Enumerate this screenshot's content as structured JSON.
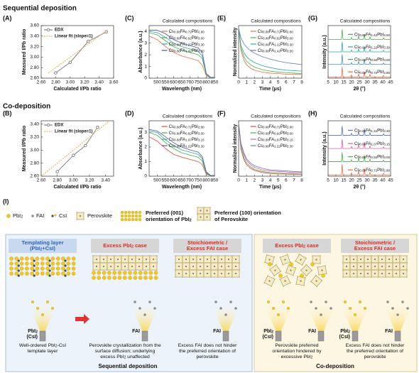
{
  "sections": [
    "Sequential deposition",
    "Co-deposition"
  ],
  "chart_data": [
    {
      "type": "line",
      "label": "(A)",
      "xlabel": "Calculated I/Pb ratio",
      "ylabel": "Measured I/Pb ratio",
      "xlim": [
        2.6,
        3.6
      ],
      "xticks": [
        {
          "value": 2.6,
          "label": "2.60"
        },
        {
          "value": 2.8,
          "label": "2.80"
        },
        {
          "value": 3.0,
          "label": "3.00"
        },
        {
          "value": 3.2,
          "label": "3.20"
        },
        {
          "value": 3.4,
          "label": "3.40"
        },
        {
          "value": 3.6,
          "label": "3.60"
        }
      ],
      "ylim": [
        2.6,
        3.6
      ],
      "yticks": [
        {
          "value": 2.6,
          "label": "2.60"
        },
        {
          "value": 2.8,
          "label": "2.80"
        },
        {
          "value": 3.0,
          "label": "3.00"
        },
        {
          "value": 3.2,
          "label": "3.20"
        },
        {
          "value": 3.4,
          "label": "3.40"
        },
        {
          "value": 3.6,
          "label": "3.60"
        }
      ],
      "legend": "upper left",
      "series": [
        {
          "name": "EDX",
          "color": "#6b6b6b",
          "marker": true,
          "x": [
            2.8,
            3.0,
            3.25,
            3.5
          ],
          "values": [
            2.7,
            2.9,
            3.3,
            3.48
          ]
        },
        {
          "name": "Linear fit (slope=1)",
          "color": "#e8a33a",
          "dashed": true,
          "x": [
            2.7,
            3.5
          ],
          "values": [
            2.7,
            3.5
          ]
        }
      ]
    },
    {
      "type": "line",
      "label": "(B)",
      "xlabel": "Calculated I/Pb ratio",
      "ylabel": "Measured I/Pb ratio",
      "xlim": [
        2.6,
        3.5
      ],
      "xticks": [
        {
          "value": 2.6,
          "label": "2.60"
        },
        {
          "value": 2.8,
          "label": "2.80"
        },
        {
          "value": 3.0,
          "label": "3.00"
        },
        {
          "value": 3.2,
          "label": "3.20"
        },
        {
          "value": 3.4,
          "label": "3.40"
        }
      ],
      "ylim": [
        2.6,
        3.45
      ],
      "yticks": [
        {
          "value": 2.6,
          "label": "2.60"
        },
        {
          "value": 2.8,
          "label": "2.80"
        },
        {
          "value": 3.0,
          "label": "3.00"
        },
        {
          "value": 3.2,
          "label": "3.20"
        },
        {
          "value": 3.4,
          "label": "3.40"
        }
      ],
      "legend": "upper left",
      "series": [
        {
          "name": "EDX",
          "color": "#6b6b6b",
          "marker": true,
          "x": [
            2.8,
            3.0,
            3.15,
            3.3
          ],
          "values": [
            2.67,
            2.92,
            3.07,
            3.35
          ]
        },
        {
          "name": "Linear fit (slope=1)",
          "color": "#e8a33a",
          "dashed": true,
          "x": [
            2.6,
            3.45
          ],
          "values": [
            2.6,
            3.45
          ]
        }
      ]
    },
    {
      "type": "line",
      "label": "(C)",
      "legend_title": "Calculated compositions",
      "xlabel": "Wavelength (nm)",
      "ylabel": "Absorbance (a.u.)",
      "x": [
        450,
        500,
        550,
        600,
        650,
        700,
        750,
        775,
        800,
        825,
        850
      ],
      "xlim": [
        450,
        850
      ],
      "xticks": [
        500,
        550,
        600,
        650,
        700,
        750,
        800,
        850
      ],
      "ylim": [
        0,
        4.5
      ],
      "yticks": [
        0,
        1,
        2,
        3,
        4
      ],
      "legend": "upper right",
      "series": [
        {
          "name": "Cs0.08FA0.72PbI2.80",
          "color": "#ef6a3a",
          "values": [
            3.6,
            3.3,
            2.7,
            2.2,
            1.9,
            1.7,
            1.5,
            1.1,
            0.2,
            0.05,
            0.02
          ]
        },
        {
          "name": "Cs0.08FA0.92PbI3.00",
          "color": "#4cab4c",
          "values": [
            3.9,
            3.7,
            3.2,
            2.7,
            2.4,
            2.2,
            2.0,
            1.7,
            0.3,
            0.05,
            0.03
          ]
        },
        {
          "name": "Cs0.08FA1.22PbI3.30",
          "color": "#2fa6a0",
          "values": [
            4.0,
            3.9,
            3.5,
            3.0,
            2.7,
            2.5,
            2.3,
            1.9,
            0.3,
            0.05,
            0.03
          ]
        },
        {
          "name": "Cs0.08FA1.42PbI3.50",
          "color": "#4a58a8",
          "values": [
            4.1,
            4.1,
            3.8,
            3.3,
            3.0,
            2.8,
            2.6,
            2.2,
            0.4,
            0.08,
            0.05
          ]
        }
      ]
    },
    {
      "type": "line",
      "label": "(D)",
      "legend_title": "Calculated compositions",
      "xlabel": "Wavelength (nm)",
      "ylabel": "Absorbance (a.u.)",
      "x": [
        450,
        500,
        550,
        600,
        650,
        700,
        750,
        775,
        800,
        825,
        850
      ],
      "xlim": [
        450,
        850
      ],
      "xticks": [
        500,
        550,
        600,
        650,
        700,
        750,
        800,
        850
      ],
      "ylim": [
        0,
        3.8
      ],
      "yticks": [
        0,
        1,
        2,
        3
      ],
      "legend": "upper right",
      "series": [
        {
          "name": "Cs0.08FA0.72PbI2.80",
          "color": "#e8483a",
          "values": [
            2.7,
            2.4,
            1.9,
            1.5,
            1.3,
            1.15,
            1.0,
            0.8,
            0.15,
            0.04,
            0.02
          ]
        },
        {
          "name": "Cs0.08FA0.92PbI3.00",
          "color": "#4cab4c",
          "values": [
            3.0,
            2.8,
            2.3,
            1.9,
            1.6,
            1.45,
            1.3,
            1.05,
            0.2,
            0.05,
            0.03
          ]
        },
        {
          "name": "Cs0.08FA1.07PbI3.15",
          "color": "#2fa6a0",
          "values": [
            3.1,
            3.0,
            2.5,
            2.1,
            1.8,
            1.65,
            1.5,
            1.2,
            0.25,
            0.05,
            0.03
          ]
        },
        {
          "name": "Cs0.08FA1.22PbI3.30",
          "color": "#5b55a8",
          "values": [
            3.2,
            3.1,
            2.7,
            2.3,
            2.0,
            1.8,
            1.65,
            1.35,
            0.3,
            0.06,
            0.04
          ]
        }
      ]
    },
    {
      "type": "line",
      "label": "(E)",
      "legend_title": "Calculated compositions",
      "xlabel": "Time (μs)",
      "ylabel": "Normalized intensity",
      "x": [
        0,
        0.3,
        0.7,
        1,
        1.5,
        2,
        3,
        4,
        5,
        6,
        7,
        8
      ],
      "xlim": [
        0,
        8
      ],
      "xticks": [
        0,
        1,
        2,
        3,
        4,
        5,
        6,
        7,
        8
      ],
      "ylim": [
        0,
        1.05
      ],
      "legend": "upper right",
      "series": [
        {
          "name": "Cs0.08FA0.72PbI2.80",
          "color": "#ef6a3a",
          "values": [
            1,
            0.55,
            0.35,
            0.27,
            0.2,
            0.16,
            0.12,
            0.1,
            0.09,
            0.08,
            0.08,
            0.07
          ]
        },
        {
          "name": "Cs0.08FA0.92PbI3.00",
          "color": "#4cab4c",
          "values": [
            1,
            0.6,
            0.42,
            0.34,
            0.27,
            0.22,
            0.17,
            0.14,
            0.12,
            0.11,
            0.1,
            0.09
          ]
        },
        {
          "name": "Cs0.08FA1.22PbI3.30",
          "color": "#2fa6a0",
          "values": [
            1,
            0.65,
            0.5,
            0.43,
            0.36,
            0.31,
            0.25,
            0.21,
            0.18,
            0.16,
            0.15,
            0.14
          ]
        },
        {
          "name": "Cs0.08FA1.42PbI3.50",
          "color": "#6b78c0",
          "values": [
            1,
            0.8,
            0.68,
            0.62,
            0.55,
            0.5,
            0.43,
            0.38,
            0.34,
            0.31,
            0.29,
            0.27
          ]
        }
      ]
    },
    {
      "type": "line",
      "label": "(F)",
      "legend_title": "Calculated compositions",
      "xlabel": "Time (μs)",
      "ylabel": "Normalized intensity",
      "x": [
        0,
        0.3,
        0.7,
        1,
        1.5,
        2,
        3,
        4,
        5,
        6,
        7,
        8
      ],
      "xlim": [
        0,
        8
      ],
      "xticks": [
        0,
        1,
        2,
        3,
        4,
        5,
        6,
        7,
        8
      ],
      "ylim": [
        0,
        1.05
      ],
      "legend": "upper right",
      "series": [
        {
          "name": "Cs0.08FA0.72PbI2.80",
          "color": "#e8483a",
          "values": [
            1,
            0.5,
            0.3,
            0.22,
            0.15,
            0.11,
            0.07,
            0.05,
            0.04,
            0.04,
            0.03,
            0.03
          ]
        },
        {
          "name": "Cs0.08FA0.92PbI3.00",
          "color": "#4cab4c",
          "values": [
            1,
            0.55,
            0.34,
            0.25,
            0.18,
            0.13,
            0.09,
            0.07,
            0.06,
            0.05,
            0.05,
            0.04
          ]
        },
        {
          "name": "Cs0.08FA1.07PbI3.15",
          "color": "#d85ca0",
          "values": [
            1,
            0.6,
            0.4,
            0.3,
            0.22,
            0.17,
            0.12,
            0.1,
            0.09,
            0.08,
            0.07,
            0.07
          ]
        },
        {
          "name": "Cs0.08FA1.22PbI3.30",
          "color": "#6b78c0",
          "values": [
            1,
            0.62,
            0.43,
            0.33,
            0.25,
            0.2,
            0.15,
            0.12,
            0.11,
            0.1,
            0.09,
            0.08
          ]
        }
      ]
    },
    {
      "type": "line",
      "label": "(G)",
      "legend_title": "Calculated compositions",
      "xlabel": "2θ (°)",
      "ylabel": "Intensity (a.u.)",
      "x": [
        5,
        13.5,
        14,
        14.5,
        19.5,
        20,
        20.5,
        24,
        24.5,
        25,
        27.7,
        28.2,
        28.7,
        31.3,
        31.8,
        32.3,
        40,
        40.5,
        41,
        45
      ],
      "xlim": [
        5,
        45
      ],
      "xticks": [
        5,
        10,
        15,
        20,
        25,
        30,
        35,
        40,
        45
      ],
      "ylim": [
        0,
        4.2
      ],
      "legend": "curves",
      "series": [
        {
          "name": "Cs0.08FA1.42PbI3.50",
          "color": "#4cab4c",
          "values": [
            3.1,
            3.1,
            3.9,
            3.1,
            3.1,
            3.25,
            3.1,
            3.1,
            3.35,
            3.1,
            3.1,
            3.5,
            3.1,
            3.1,
            3.3,
            3.1,
            3.1,
            3.22,
            3.1,
            3.1
          ]
        },
        {
          "name": "Cs0.08FA1.22PbI3.30",
          "color": "#2fa6a0",
          "values": [
            2.1,
            2.1,
            2.9,
            2.1,
            2.1,
            2.25,
            2.1,
            2.1,
            2.35,
            2.1,
            2.1,
            2.5,
            2.1,
            2.1,
            2.3,
            2.1,
            2.1,
            2.22,
            2.1,
            2.1
          ]
        },
        {
          "name": "Cs0.08FA0.92PbI3.00",
          "color": "#4a8fb8",
          "values": [
            1.1,
            1.1,
            1.9,
            1.1,
            1.1,
            1.25,
            1.1,
            1.1,
            1.35,
            1.1,
            1.1,
            1.5,
            1.1,
            1.1,
            1.3,
            1.1,
            1.1,
            1.22,
            1.1,
            1.1
          ]
        },
        {
          "name": "Cs0.08FA0.72PbI2.80",
          "color": "#ef6a3a",
          "values": [
            0.1,
            0.1,
            0.9,
            0.1,
            0.1,
            0.25,
            0.1,
            0.1,
            0.35,
            0.1,
            0.1,
            0.5,
            0.1,
            0.1,
            0.3,
            0.1,
            0.1,
            0.22,
            0.1,
            0.1
          ]
        }
      ]
    },
    {
      "type": "line",
      "label": "(H)",
      "legend_title": "Calculated compositions",
      "xlabel": "2θ (°)",
      "ylabel": "Intensity (a.u.)",
      "x": [
        5,
        13.5,
        14,
        14.5,
        19.5,
        20,
        20.5,
        24,
        24.5,
        25,
        27.7,
        28.2,
        28.7,
        31.3,
        31.8,
        32.3,
        40,
        40.5,
        41,
        45
      ],
      "xlim": [
        5,
        45
      ],
      "xticks": [
        5,
        10,
        15,
        20,
        25,
        30,
        35,
        40,
        45
      ],
      "ylim": [
        0,
        4.2
      ],
      "legend": "curves",
      "series": [
        {
          "name": "Cs0.08FA1.22PbI3.30",
          "color": "#5b6fb8",
          "values": [
            3.1,
            3.1,
            3.8,
            3.1,
            3.1,
            3.25,
            3.1,
            3.1,
            3.4,
            3.1,
            3.1,
            3.6,
            3.1,
            3.1,
            3.3,
            3.1,
            3.1,
            3.22,
            3.1,
            3.1
          ]
        },
        {
          "name": "Cs0.08FA1.07PbI3.15",
          "color": "#d85ca0",
          "values": [
            2.1,
            2.1,
            2.8,
            2.1,
            2.1,
            2.25,
            2.1,
            2.1,
            2.4,
            2.1,
            2.1,
            2.6,
            2.1,
            2.1,
            2.3,
            2.1,
            2.1,
            2.22,
            2.1,
            2.1
          ]
        },
        {
          "name": "Cs0.08FA0.92PbI3.00",
          "color": "#4cab4c",
          "values": [
            1.1,
            1.1,
            1.8,
            1.1,
            1.1,
            1.25,
            1.1,
            1.1,
            1.4,
            1.1,
            1.1,
            1.6,
            1.1,
            1.1,
            1.3,
            1.1,
            1.1,
            1.22,
            1.1,
            1.1
          ]
        },
        {
          "name": "Cs0.08FA0.72PbI2.80",
          "color": "#ef6a3a",
          "values": [
            0.1,
            0.1,
            0.9,
            0.1,
            0.1,
            0.25,
            0.1,
            0.1,
            0.4,
            0.1,
            0.1,
            0.6,
            0.1,
            0.1,
            0.3,
            0.1,
            0.1,
            0.22,
            0.1,
            0.1
          ]
        }
      ]
    }
  ],
  "diagram": {
    "label": "(I)",
    "legend": [
      [
        "PbI2"
      ],
      [
        "FAI"
      ],
      [
        "CsI"
      ],
      [
        "Perovskite"
      ],
      [
        "Preferred (001)",
        "orientation of PbI2"
      ],
      [
        "Preferred (100) orientation",
        "of Perovskite"
      ]
    ],
    "panels": [
      {
        "title": [
          "Templating layer",
          "(PbI2+CsI)"
        ],
        "sources": [
          [
            "PbI2",
            "(CsI)"
          ]
        ],
        "caption": [
          "Well-ordered PbI2-CsI",
          "template layer"
        ]
      },
      {
        "title": [
          "Excess PbI2 case"
        ],
        "sources": [
          [
            "FAI"
          ]
        ],
        "caption": [
          "Perovskite crystallization from the",
          "surface diffusion; underlying",
          "excess PbI2 unaffected"
        ]
      },
      {
        "title": [
          "Stoichiometric /",
          "Excess FAI case"
        ],
        "sources": [
          [
            "FAI"
          ]
        ],
        "caption": [
          "Excess FAI does not hinder",
          "the preferred orientation of",
          "perovskite"
        ]
      },
      {
        "title": [
          "Excess PbI2 case"
        ],
        "sources": [
          [
            "PbI2",
            "(CsI)"
          ],
          [
            "FAI"
          ]
        ],
        "caption": [
          "Perovskite preferred",
          "orientation hindered by",
          "excessive PbI2"
        ]
      },
      {
        "title": [
          "Stoichiometric /",
          "Excess FAI case"
        ],
        "sources": [
          [
            "PbI2",
            "(CsI)"
          ],
          [
            "FAI"
          ]
        ],
        "caption": [
          "Excess FAI does not hinder",
          "the preferred orientation of",
          "perovskite"
        ]
      }
    ],
    "groups": [
      "Sequential deposition",
      "Co-deposition"
    ]
  }
}
